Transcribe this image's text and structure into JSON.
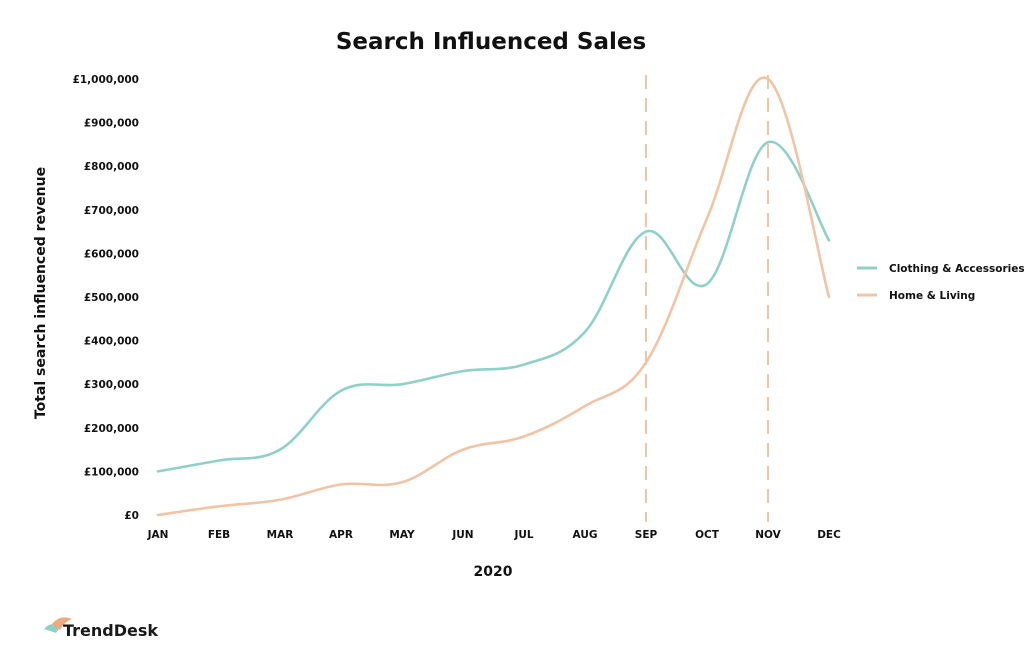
{
  "logo": {
    "text": "TrendDesk"
  },
  "colors": {
    "clothing": "#8fd0c8",
    "home": "#f0c4a4",
    "marker": "#f0c4a4"
  },
  "chart_data": {
    "type": "line",
    "title": "Search Influenced Sales",
    "xlabel": "2020",
    "ylabel": "Total search influenced revenue",
    "categories": [
      "JAN",
      "FEB",
      "MAR",
      "APR",
      "MAY",
      "JUN",
      "JUL",
      "AUG",
      "SEP",
      "OCT",
      "NOV",
      "DEC"
    ],
    "ylim": [
      0,
      1000000
    ],
    "yticks": [
      0,
      100000,
      200000,
      300000,
      400000,
      500000,
      600000,
      700000,
      800000,
      900000,
      1000000
    ],
    "ytick_labels": [
      "£0",
      "£100,000",
      "£200,000",
      "£300,000",
      "£400,000",
      "£500,000",
      "£600,000",
      "£700,000",
      "£800,000",
      "£900,000",
      "£1,000,000"
    ],
    "series": [
      {
        "name": "Clothing & Accessories",
        "color": "#8fd0c8",
        "values": [
          100000,
          125000,
          150000,
          285000,
          300000,
          330000,
          345000,
          420000,
          650000,
          530000,
          855000,
          630000
        ]
      },
      {
        "name": "Home & Living",
        "color": "#f0c4a4",
        "values": [
          0,
          20000,
          35000,
          70000,
          75000,
          150000,
          180000,
          250000,
          350000,
          680000,
          1000000,
          500000
        ]
      }
    ],
    "vlines": [
      "SEP",
      "NOV"
    ],
    "grid": false,
    "legend": "right"
  }
}
